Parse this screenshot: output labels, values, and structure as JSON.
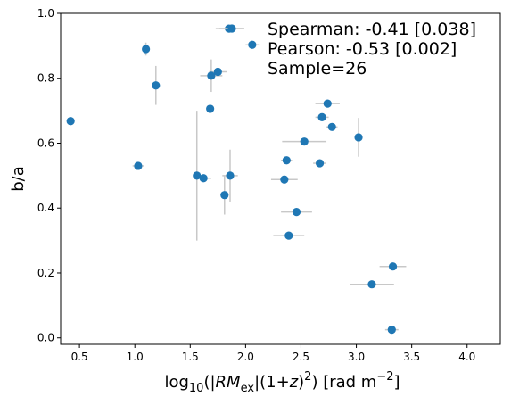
{
  "chart_data": {
    "type": "scatter",
    "xlabel": {
      "pre": "log",
      "sub1": "10",
      "mid1": "(|",
      "rm": "RM",
      "sub2": "ex",
      "mid2": "|(1+",
      "z": "z",
      "mid3": ")",
      "sup1": "2",
      "mid4": ") [rad m",
      "sup2": "−2",
      "post": "]"
    },
    "ylabel": "b/a",
    "xlim": [
      0.33,
      4.3
    ],
    "ylim": [
      -0.02,
      1.0
    ],
    "xticks": [
      "0.5",
      "1.0",
      "1.5",
      "2.0",
      "2.5",
      "3.0",
      "3.5",
      "4.0"
    ],
    "yticks": [
      "0.0",
      "0.2",
      "0.4",
      "0.6",
      "0.8",
      "1.0"
    ],
    "annotations": [
      "Spearman: -0.41 [0.038]",
      "Pearson: -0.53 [0.002]",
      "Sample=26"
    ],
    "marker_color": "#1f77b4",
    "errorbar_color": "#c8c8c8",
    "points": [
      {
        "x": 0.42,
        "y": 0.668,
        "xerr": 0.0,
        "yerr": 0.0
      },
      {
        "x": 1.03,
        "y": 0.53,
        "xerr": 0.05,
        "yerr": 0.0
      },
      {
        "x": 1.1,
        "y": 0.89,
        "xerr": 0.03,
        "yerr": 0.02
      },
      {
        "x": 1.19,
        "y": 0.778,
        "xerr": 0.0,
        "yerr": 0.06
      },
      {
        "x": 1.56,
        "y": 0.5,
        "xerr": 0.0,
        "yerr": 0.2
      },
      {
        "x": 1.62,
        "y": 0.492,
        "xerr": 0.07,
        "yerr": 0.0
      },
      {
        "x": 1.68,
        "y": 0.706,
        "xerr": 0.0,
        "yerr": 0.0
      },
      {
        "x": 1.69,
        "y": 0.808,
        "xerr": 0.1,
        "yerr": 0.05
      },
      {
        "x": 1.75,
        "y": 0.82,
        "xerr": 0.08,
        "yerr": 0.0
      },
      {
        "x": 1.81,
        "y": 0.44,
        "xerr": 0.0,
        "yerr": 0.06
      },
      {
        "x": 1.85,
        "y": 0.953,
        "xerr": 0.12,
        "yerr": 0.0
      },
      {
        "x": 1.86,
        "y": 0.5,
        "xerr": 0.07,
        "yerr": 0.08
      },
      {
        "x": 2.06,
        "y": 0.903,
        "xerr": 0.06,
        "yerr": 0.0
      },
      {
        "x": 2.35,
        "y": 0.488,
        "xerr": 0.12,
        "yerr": 0.0
      },
      {
        "x": 2.37,
        "y": 0.547,
        "xerr": 0.05,
        "yerr": 0.0
      },
      {
        "x": 2.39,
        "y": 0.315,
        "xerr": 0.14,
        "yerr": 0.0
      },
      {
        "x": 2.46,
        "y": 0.388,
        "xerr": 0.14,
        "yerr": 0.0
      },
      {
        "x": 2.53,
        "y": 0.605,
        "xerr": 0.2,
        "yerr": 0.0
      },
      {
        "x": 2.67,
        "y": 0.538,
        "xerr": 0.06,
        "yerr": 0.0
      },
      {
        "x": 2.69,
        "y": 0.68,
        "xerr": 0.06,
        "yerr": 0.0
      },
      {
        "x": 2.74,
        "y": 0.722,
        "xerr": 0.11,
        "yerr": 0.0
      },
      {
        "x": 2.78,
        "y": 0.65,
        "xerr": 0.05,
        "yerr": 0.0
      },
      {
        "x": 3.02,
        "y": 0.618,
        "xerr": 0.0,
        "yerr": 0.06
      },
      {
        "x": 3.14,
        "y": 0.165,
        "xerr": 0.2,
        "yerr": 0.0
      },
      {
        "x": 3.32,
        "y": 0.025,
        "xerr": 0.06,
        "yerr": 0.0
      },
      {
        "x": 3.33,
        "y": 0.22,
        "xerr": 0.12,
        "yerr": 0.0
      }
    ]
  }
}
